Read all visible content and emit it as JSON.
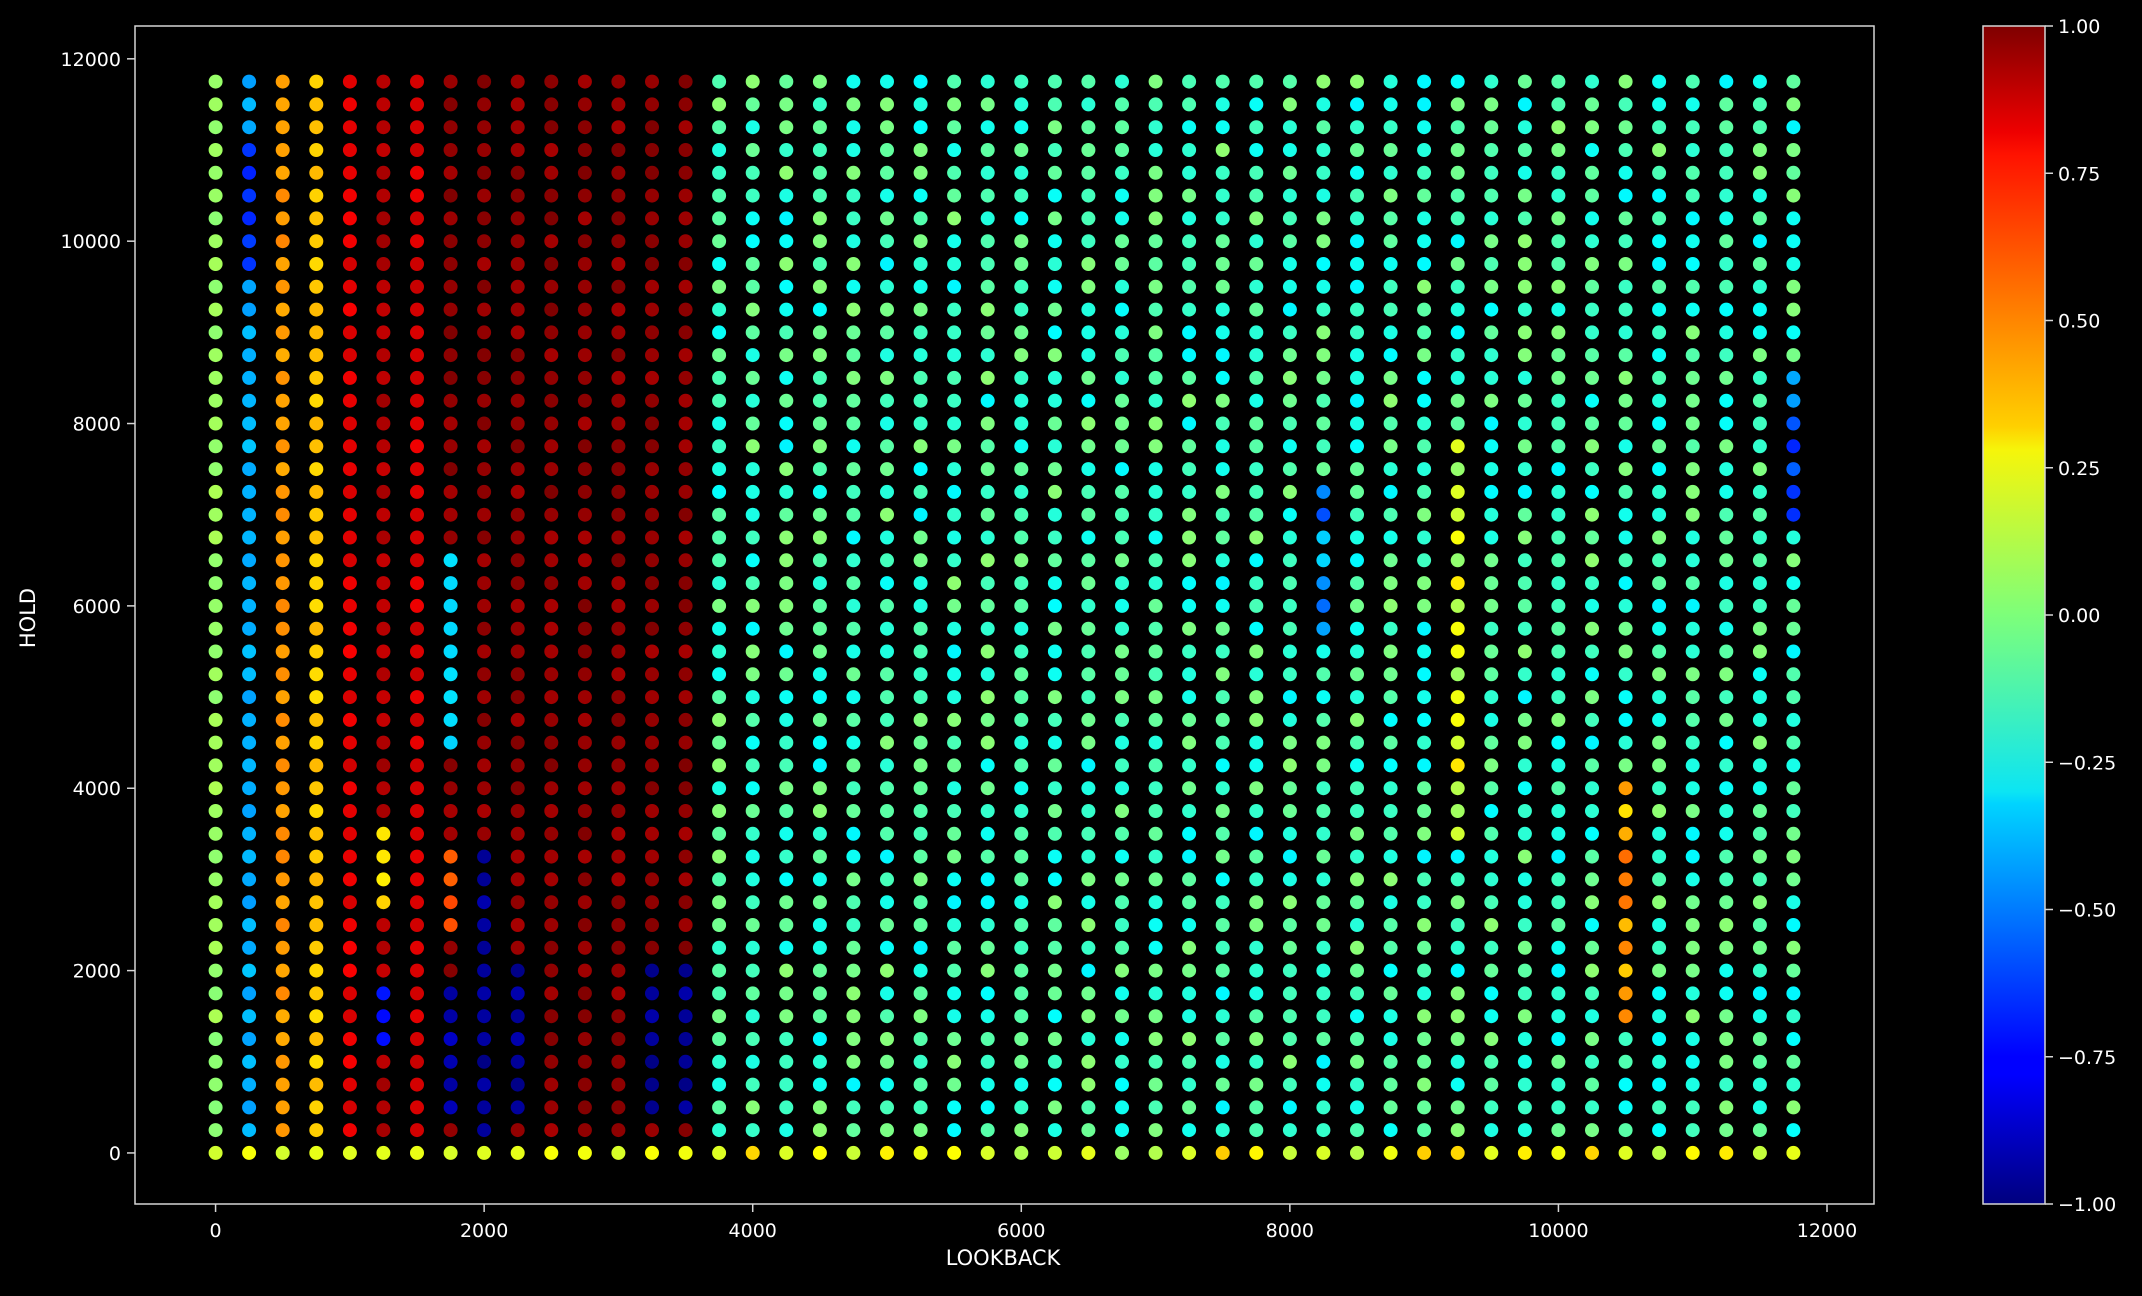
{
  "chart_data": {
    "type": "scatter",
    "title": "",
    "xlabel": "LOOKBACK",
    "ylabel": "HOLD",
    "xlim": [
      -600,
      12350
    ],
    "ylim": [
      -560,
      12360
    ],
    "x_ticks": [
      0,
      2000,
      4000,
      6000,
      8000,
      10000,
      12000
    ],
    "y_ticks": [
      0,
      2000,
      4000,
      6000,
      8000,
      10000,
      12000
    ],
    "x_values": {
      "start": 0,
      "step": 250,
      "count": 48
    },
    "y_values": {
      "start": 0,
      "step": 250,
      "count": 48
    },
    "color_value_description": "estimated value per point; rows = y (HOLD) blocks, cols = x (LOOKBACK) bands",
    "colormap": "jet",
    "colorbar": {
      "range": [
        -1.0,
        1.0
      ],
      "ticks": [
        "1.00",
        "0.75",
        "0.50",
        "0.25",
        "0.00",
        "−0.25",
        "−0.50",
        "−0.75",
        "−1.00"
      ]
    },
    "columns": [
      {
        "x_from": 0,
        "x_to": 0,
        "value": 0.05
      },
      {
        "x_from": 250,
        "x_to": 250,
        "value": -0.4
      },
      {
        "x_from": 500,
        "x_to": 500,
        "value": 0.45
      },
      {
        "x_from": 750,
        "x_to": 750,
        "value": 0.35
      },
      {
        "x_from": 1000,
        "x_to": 1000,
        "value": 0.8
      },
      {
        "x_from": 1250,
        "x_to": 1250,
        "value": 0.9
      },
      {
        "x_from": 1500,
        "x_to": 1500,
        "value": 0.82
      },
      {
        "x_from": 1750,
        "x_to": 3500,
        "value": 0.96
      },
      {
        "x_from": 3750,
        "x_to": 11750,
        "value": -0.12
      }
    ],
    "blocks": [
      {
        "x_from": 1750,
        "x_to": 1750,
        "y_from": 4500,
        "y_to": 6500,
        "value": -0.3
      },
      {
        "x_from": 1750,
        "x_to": 1750,
        "y_from": 2500,
        "y_to": 3250,
        "value": 0.6
      },
      {
        "x_from": 2000,
        "x_to": 2000,
        "y_from": 250,
        "y_to": 3250,
        "value": -0.95
      },
      {
        "x_from": 1750,
        "x_to": 1750,
        "y_from": 500,
        "y_to": 1750,
        "value": -0.9
      },
      {
        "x_from": 2250,
        "x_to": 2250,
        "y_from": 500,
        "y_to": 2000,
        "value": -0.95
      },
      {
        "x_from": 3250,
        "x_to": 3500,
        "y_from": 500,
        "y_to": 2000,
        "value": -0.95
      },
      {
        "x_from": 1250,
        "x_to": 1250,
        "y_from": 1250,
        "y_to": 1750,
        "value": -0.7
      },
      {
        "x_from": 1250,
        "x_to": 1250,
        "y_from": 2750,
        "y_to": 3500,
        "value": 0.3
      },
      {
        "x_from": 250,
        "x_to": 250,
        "y_from": 9750,
        "y_to": 11000,
        "value": -0.65
      },
      {
        "x_from": 10500,
        "x_to": 10500,
        "y_from": 1500,
        "y_to": 4000,
        "value": 0.4
      },
      {
        "x_from": 9250,
        "x_to": 9250,
        "y_from": 3500,
        "y_to": 7750,
        "value": 0.15
      },
      {
        "x_from": 11750,
        "x_to": 11750,
        "y_from": 7000,
        "y_to": 8500,
        "value": -0.55
      },
      {
        "x_from": 8250,
        "x_to": 8250,
        "y_from": 5750,
        "y_to": 7250,
        "value": -0.45
      },
      {
        "x_from": 0,
        "x_to": 11750,
        "y_from": 0,
        "y_to": 0,
        "value": 0.2
      }
    ]
  }
}
